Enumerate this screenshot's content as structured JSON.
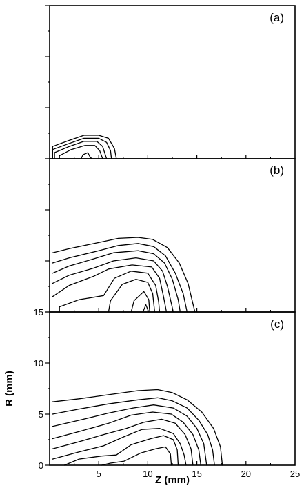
{
  "chart_data": [
    {
      "type": "contour",
      "panel_label": "(a)",
      "xlim": [
        0,
        25
      ],
      "ylim": [
        0,
        15
      ],
      "contours": [
        [
          [
            0.3,
            0
          ],
          [
            0.3,
            1.2
          ],
          [
            2,
            1.8
          ],
          [
            3.5,
            2.3
          ],
          [
            5,
            2.3
          ],
          [
            6,
            2
          ],
          [
            6.6,
            1
          ],
          [
            6.8,
            0
          ]
        ],
        [
          [
            0.3,
            0
          ],
          [
            0.3,
            0.9
          ],
          [
            2,
            1.5
          ],
          [
            3.5,
            2.0
          ],
          [
            5,
            2.0
          ],
          [
            5.8,
            1.6
          ],
          [
            6.2,
            0.8
          ],
          [
            6.3,
            0
          ]
        ],
        [
          [
            0.5,
            0
          ],
          [
            0.5,
            0.6
          ],
          [
            2,
            1.2
          ],
          [
            3.5,
            1.7
          ],
          [
            4.8,
            1.7
          ],
          [
            5.4,
            1.2
          ],
          [
            5.8,
            0
          ]
        ],
        [
          [
            1,
            0
          ],
          [
            1,
            0.3
          ],
          [
            2.2,
            0.9
          ],
          [
            3.6,
            1.3
          ],
          [
            4.6,
            1.3
          ],
          [
            5.1,
            0.8
          ],
          [
            5.4,
            0
          ]
        ],
        [
          [
            3.2,
            0
          ],
          [
            3.4,
            0.4
          ],
          [
            3.9,
            0.6
          ],
          [
            4.1,
            0.2
          ],
          [
            4.3,
            0
          ]
        ]
      ]
    },
    {
      "type": "contour",
      "panel_label": "(b)",
      "xlim": [
        0,
        25
      ],
      "ylim": [
        0,
        15
      ],
      "contours": [
        [
          [
            0.3,
            5.8
          ],
          [
            2,
            6.2
          ],
          [
            5,
            6.8
          ],
          [
            7,
            7.2
          ],
          [
            9,
            7.3
          ],
          [
            10.5,
            7.1
          ],
          [
            12,
            6.3
          ],
          [
            13.2,
            4.8
          ],
          [
            14.1,
            2.8
          ],
          [
            14.6,
            0.8
          ],
          [
            14.8,
            0
          ]
        ],
        [
          [
            0.3,
            4.8
          ],
          [
            2,
            5.3
          ],
          [
            5,
            6.0
          ],
          [
            7,
            6.5
          ],
          [
            9,
            6.7
          ],
          [
            10.6,
            6.4
          ],
          [
            11.8,
            5.5
          ],
          [
            12.8,
            3.8
          ],
          [
            13.6,
            1.8
          ],
          [
            14.0,
            0
          ]
        ],
        [
          [
            0.3,
            3.8
          ],
          [
            2,
            4.5
          ],
          [
            4.5,
            5.2
          ],
          [
            6.5,
            5.8
          ],
          [
            9,
            6.0
          ],
          [
            10.6,
            5.7
          ],
          [
            11.7,
            4.8
          ],
          [
            12.5,
            3.2
          ],
          [
            13.1,
            1.2
          ],
          [
            13.3,
            0
          ]
        ],
        [
          [
            0.3,
            2.8
          ],
          [
            2,
            3.6
          ],
          [
            4.5,
            4.3
          ],
          [
            6.5,
            5.0
          ],
          [
            8.8,
            5.3
          ],
          [
            10.6,
            5.0
          ],
          [
            11.5,
            4.0
          ],
          [
            12.0,
            2.5
          ],
          [
            12.6,
            0
          ]
        ],
        [
          [
            0.3,
            1.5
          ],
          [
            2,
            2.6
          ],
          [
            4.5,
            3.5
          ],
          [
            6,
            4.2
          ],
          [
            8.4,
            4.6
          ],
          [
            10.4,
            4.4
          ],
          [
            11.2,
            3.3
          ],
          [
            11.6,
            1.5
          ],
          [
            11.9,
            0
          ]
        ],
        [
          [
            1,
            0
          ],
          [
            1,
            0.5
          ],
          [
            3,
            1.2
          ],
          [
            5.5,
            1.6
          ],
          [
            6.6,
            3.3
          ],
          [
            8.3,
            4.0
          ],
          [
            10,
            3.8
          ],
          [
            10.8,
            2.6
          ],
          [
            11.1,
            1
          ],
          [
            11.2,
            0
          ]
        ],
        [
          [
            6,
            0
          ],
          [
            6.2,
            1.1
          ],
          [
            7.4,
            2.7
          ],
          [
            8.8,
            3.2
          ],
          [
            10,
            2.9
          ],
          [
            10.5,
            1.8
          ],
          [
            10.7,
            0
          ]
        ],
        [
          [
            8.3,
            0
          ],
          [
            8.6,
            1.1
          ],
          [
            9.6,
            2.0
          ],
          [
            10.1,
            1.2
          ],
          [
            10.2,
            0
          ]
        ],
        [
          [
            9.5,
            0
          ],
          [
            9.8,
            0.7
          ],
          [
            10.1,
            0
          ]
        ]
      ]
    },
    {
      "type": "contour",
      "panel_label": "(c)",
      "xlim": [
        0,
        25
      ],
      "ylim": [
        0,
        15
      ],
      "x_ticks": [
        5,
        10,
        15,
        20,
        25
      ],
      "y_ticks": [
        0,
        5,
        10,
        15
      ],
      "xlabel": "Z (mm)",
      "ylabel": "R (mm)",
      "contours": [
        [
          [
            0.3,
            6.2
          ],
          [
            3,
            6.5
          ],
          [
            6,
            6.9
          ],
          [
            9,
            7.3
          ],
          [
            11,
            7.4
          ],
          [
            12.5,
            7.1
          ],
          [
            14,
            6.4
          ],
          [
            15.5,
            5.2
          ],
          [
            16.7,
            3.6
          ],
          [
            17.4,
            1.8
          ],
          [
            17.6,
            0
          ]
        ],
        [
          [
            0.3,
            5.0
          ],
          [
            3,
            5.5
          ],
          [
            6,
            6.0
          ],
          [
            9,
            6.4
          ],
          [
            11,
            6.6
          ],
          [
            12.5,
            6.3
          ],
          [
            14,
            5.6
          ],
          [
            15.2,
            4.4
          ],
          [
            16.1,
            3.0
          ],
          [
            16.6,
            1.5
          ],
          [
            16.8,
            0
          ]
        ],
        [
          [
            0.3,
            3.8
          ],
          [
            3,
            4.4
          ],
          [
            6,
            5.1
          ],
          [
            8.5,
            5.6
          ],
          [
            10.6,
            5.9
          ],
          [
            12.6,
            5.6
          ],
          [
            14,
            4.8
          ],
          [
            15,
            3.6
          ],
          [
            15.7,
            2.1
          ],
          [
            16.0,
            0
          ]
        ],
        [
          [
            0.3,
            2.6
          ],
          [
            3,
            3.3
          ],
          [
            6,
            4.1
          ],
          [
            8.3,
            4.9
          ],
          [
            10.5,
            5.2
          ],
          [
            12.4,
            5.0
          ],
          [
            13.6,
            4.2
          ],
          [
            14.6,
            3.0
          ],
          [
            15.2,
            1.5
          ],
          [
            15.4,
            0
          ]
        ],
        [
          [
            0.3,
            1.6
          ],
          [
            3,
            2.3
          ],
          [
            5.5,
            3.0
          ],
          [
            7.8,
            3.6
          ],
          [
            9.6,
            4.2
          ],
          [
            11.4,
            4.5
          ],
          [
            12.8,
            4.1
          ],
          [
            13.8,
            3.0
          ],
          [
            14.4,
            1.6
          ],
          [
            14.6,
            0
          ]
        ],
        [
          [
            0.3,
            0.6
          ],
          [
            3,
            1.3
          ],
          [
            5.5,
            1.9
          ],
          [
            7.6,
            2.8
          ],
          [
            9.4,
            3.5
          ],
          [
            11.2,
            3.6
          ],
          [
            12.6,
            3.1
          ],
          [
            13.3,
            2.1
          ],
          [
            13.7,
            1.0
          ],
          [
            13.9,
            0
          ]
        ],
        [
          [
            1.5,
            0
          ],
          [
            3,
            0.6
          ],
          [
            5.3,
            0.9
          ],
          [
            6.8,
            1.0
          ],
          [
            8.3,
            2.0
          ],
          [
            10.3,
            2.6
          ],
          [
            11.6,
            2.9
          ],
          [
            12.6,
            2.5
          ],
          [
            13.0,
            1.5
          ],
          [
            13.1,
            0
          ]
        ],
        [
          [
            5.3,
            0
          ],
          [
            6.2,
            0.2
          ],
          [
            7.6,
            0.4
          ],
          [
            9.3,
            1.2
          ],
          [
            10.8,
            1.6
          ],
          [
            11.8,
            1.8
          ],
          [
            12.3,
            1.1
          ],
          [
            12.4,
            0
          ]
        ]
      ]
    }
  ]
}
